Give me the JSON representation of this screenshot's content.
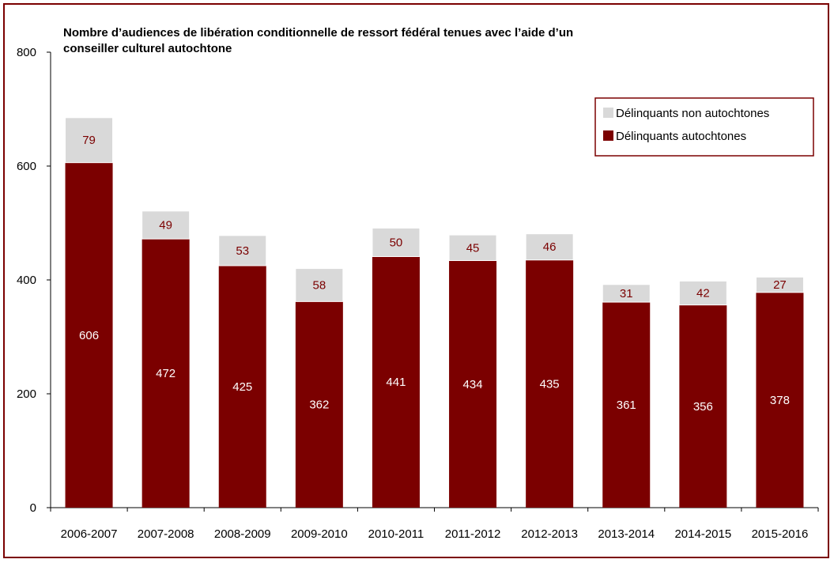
{
  "chart_data": {
    "type": "bar",
    "stacked": true,
    "title": "Nombre d’audiences de libération conditionnelle de ressort fédéral tenues avec l’aide d’un conseiller culturel autochtone",
    "title_lines": [
      "Nombre d’audiences de libération conditionnelle de ressort fédéral tenues avec l’aide d’un",
      "conseiller culturel autochtone"
    ],
    "categories": [
      "2006-2007",
      "2007-2008",
      "2008-2009",
      "2009-2010",
      "2010-2011",
      "2011-2012",
      "2012-2013",
      "2013-2014",
      "2014-2015",
      "2015-2016"
    ],
    "series": [
      {
        "name": "Délinquants autochtones",
        "color": "#7b0000",
        "values": [
          606,
          472,
          425,
          362,
          441,
          434,
          435,
          361,
          356,
          378
        ]
      },
      {
        "name": "Délinquants non autochtones",
        "color": "#d9d9d9",
        "values": [
          79,
          49,
          53,
          58,
          50,
          45,
          46,
          31,
          42,
          27
        ]
      }
    ],
    "ylim": [
      0,
      800
    ],
    "yticks": [
      0,
      200,
      400,
      600,
      800
    ],
    "xlabel": "",
    "ylabel": "",
    "grid": false,
    "legend_position": "top-right",
    "legend_order": [
      "Délinquants non autochtones",
      "Délinquants autochtones"
    ],
    "frame_color": "#7b0000"
  }
}
